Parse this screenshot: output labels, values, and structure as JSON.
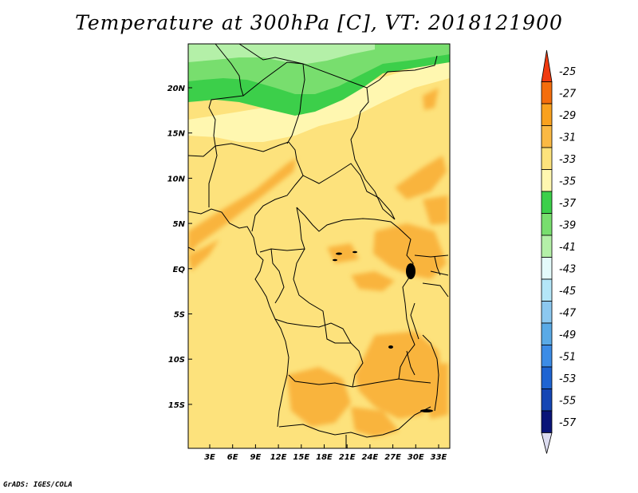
{
  "title": "Temperature at 300hPa [C], VT: 2018121900",
  "footer": "GrADS: IGES/COLA",
  "map": {
    "lat_labels": [
      "20N",
      "15N",
      "10N",
      "5N",
      "EQ",
      "5S",
      "10S",
      "15S"
    ],
    "lon_labels": [
      "3E",
      "6E",
      "9E",
      "12E",
      "15E",
      "18E",
      "21E",
      "24E",
      "27E",
      "30E",
      "33E"
    ]
  },
  "colorbar": {
    "levels": [
      "-25",
      "-27",
      "-29",
      "-31",
      "-33",
      "-35",
      "-37",
      "-39",
      "-41",
      "-43",
      "-45",
      "-47",
      "-49",
      "-51",
      "-53",
      "-55",
      "-57"
    ],
    "colors": [
      "#f03a10",
      "#f46d0c",
      "#f9a11e",
      "#fbb944",
      "#fde27c",
      "#fff7b0",
      "#3ccf4a",
      "#78de6e",
      "#b4f0a8",
      "#e4fbfb",
      "#b4e6f8",
      "#8cc8f0",
      "#5aaae6",
      "#3c8ce6",
      "#1e64d2",
      "#1446b4",
      "#0a1478",
      "#dcdcf0"
    ]
  }
}
